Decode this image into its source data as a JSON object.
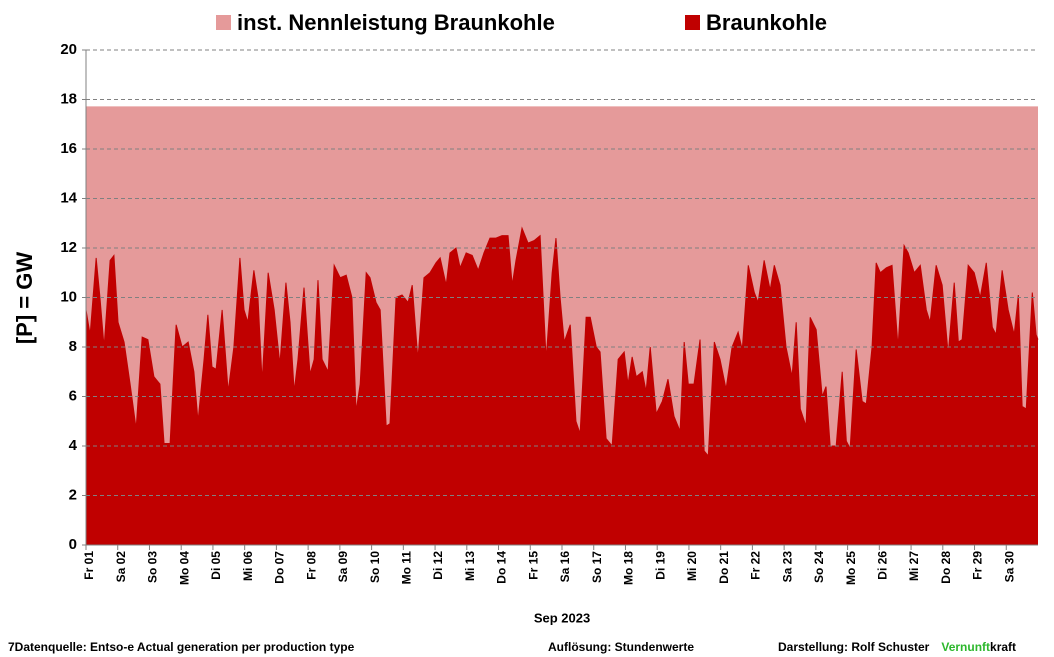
{
  "chart_data": {
    "type": "area",
    "legend": "top",
    "ylabel": "[P]  = GW",
    "xlabel": "Sep 2023",
    "ylim": [
      0,
      20
    ],
    "yticks": [
      0,
      2,
      4,
      6,
      8,
      10,
      12,
      14,
      16,
      18,
      20
    ],
    "grid": true,
    "xlim": [
      0,
      30
    ],
    "xticks": [
      {
        "value": 0,
        "label": "Fr 01"
      },
      {
        "value": 1,
        "label": "Sa 02"
      },
      {
        "value": 2,
        "label": "So 03"
      },
      {
        "value": 3,
        "label": "Mo 04"
      },
      {
        "value": 4,
        "label": "Di 05"
      },
      {
        "value": 5,
        "label": "Mi 06"
      },
      {
        "value": 6,
        "label": "Do 07"
      },
      {
        "value": 7,
        "label": "Fr 08"
      },
      {
        "value": 8,
        "label": "Sa 09"
      },
      {
        "value": 9,
        "label": "So 10"
      },
      {
        "value": 10,
        "label": "Mo 11"
      },
      {
        "value": 11,
        "label": "Di 12"
      },
      {
        "value": 12,
        "label": "Mi 13"
      },
      {
        "value": 13,
        "label": "Do 14"
      },
      {
        "value": 14,
        "label": "Fr 15"
      },
      {
        "value": 15,
        "label": "Sa 16"
      },
      {
        "value": 16,
        "label": "So 17"
      },
      {
        "value": 17,
        "label": "Mo 18"
      },
      {
        "value": 18,
        "label": "Di 19"
      },
      {
        "value": 19,
        "label": "Mi 20"
      },
      {
        "value": 20,
        "label": "Do 21"
      },
      {
        "value": 21,
        "label": "Fr 22"
      },
      {
        "value": 22,
        "label": "Sa 23"
      },
      {
        "value": 23,
        "label": "So 24"
      },
      {
        "value": 24,
        "label": "Mo 25"
      },
      {
        "value": 25,
        "label": "Di 26"
      },
      {
        "value": 26,
        "label": "Mi 27"
      },
      {
        "value": 27,
        "label": "Do 28"
      },
      {
        "value": 28,
        "label": "Fr 29"
      },
      {
        "value": 29,
        "label": "Sa 30"
      }
    ],
    "series": [
      {
        "name": "inst. Nennleistung Braunkohle",
        "color": "#e59a9a",
        "x": [
          0,
          30
        ],
        "values": [
          17.7,
          17.7
        ]
      },
      {
        "name": "Braunkohle",
        "color": "#c00000",
        "x": [
          0,
          0.13,
          0.32,
          0.44,
          0.57,
          0.76,
          0.88,
          1.01,
          1.2,
          1.39,
          1.58,
          1.77,
          1.95,
          2.14,
          2.33,
          2.46,
          2.65,
          2.84,
          3.03,
          3.22,
          3.4,
          3.53,
          3.72,
          3.84,
          3.97,
          4.1,
          4.29,
          4.48,
          4.66,
          4.85,
          4.98,
          5.1,
          5.29,
          5.42,
          5.55,
          5.74,
          5.93,
          6.11,
          6.3,
          6.43,
          6.56,
          6.68,
          6.87,
          7.06,
          7.19,
          7.31,
          7.44,
          7.63,
          7.82,
          8.01,
          8.2,
          8.38,
          8.51,
          8.64,
          8.83,
          8.95,
          9.14,
          9.27,
          9.46,
          9.58,
          9.77,
          9.96,
          10.15,
          10.28,
          10.46,
          10.65,
          10.84,
          11.03,
          11.16,
          11.35,
          11.47,
          11.66,
          11.79,
          11.98,
          12.17,
          12.36,
          12.54,
          12.73,
          12.92,
          13.11,
          13.3,
          13.43,
          13.55,
          13.74,
          13.93,
          14.12,
          14.31,
          14.5,
          14.69,
          14.81,
          14.94,
          15.07,
          15.26,
          15.44,
          15.57,
          15.76,
          15.89,
          16.08,
          16.2,
          16.39,
          16.58,
          16.77,
          16.96,
          17.08,
          17.21,
          17.34,
          17.53,
          17.65,
          17.78,
          17.97,
          18.16,
          18.34,
          18.53,
          18.72,
          18.85,
          18.98,
          19.16,
          19.35,
          19.48,
          19.61,
          19.8,
          19.98,
          20.17,
          20.36,
          20.55,
          20.68,
          20.87,
          21.06,
          21.18,
          21.37,
          21.56,
          21.69,
          21.87,
          22.06,
          22.25,
          22.38,
          22.51,
          22.69,
          22.82,
          23.01,
          23.2,
          23.32,
          23.45,
          23.64,
          23.83,
          23.96,
          24.08,
          24.27,
          24.46,
          24.59,
          24.77,
          24.9,
          25.03,
          25.22,
          25.4,
          25.59,
          25.78,
          25.91,
          26.1,
          26.29,
          26.48,
          26.6,
          26.79,
          26.98,
          27.17,
          27.36,
          27.49,
          27.61,
          27.8,
          27.99,
          28.18,
          28.37,
          28.56,
          28.68,
          28.87,
          29.06,
          29.25,
          29.38,
          29.5,
          29.63,
          29.82,
          29.94,
          30
        ],
        "values": [
          9.5,
          8.5,
          11.6,
          10,
          8,
          11.5,
          11.7,
          9,
          8.2,
          6.5,
          4.7,
          8.4,
          8.3,
          6.8,
          6.5,
          4.1,
          4.1,
          8.9,
          8,
          8.2,
          7,
          5,
          7.5,
          9.3,
          7.2,
          7.1,
          9.5,
          6.2,
          8,
          11.6,
          9.5,
          9,
          11.1,
          10,
          6.6,
          11,
          9.5,
          7.3,
          10.6,
          9,
          6.2,
          7.5,
          10.4,
          6.9,
          7.5,
          10.7,
          7.5,
          7,
          11.3,
          10.8,
          10.9,
          10,
          5.4,
          6.5,
          11,
          10.8,
          9.8,
          9.5,
          4.8,
          4.9,
          10,
          10.1,
          9.8,
          10.5,
          7.5,
          10.8,
          11,
          11.4,
          11.6,
          10.5,
          11.8,
          12,
          11.2,
          11.8,
          11.7,
          11.1,
          11.8,
          12.4,
          12.4,
          12.5,
          12.5,
          10.5,
          11.5,
          12.8,
          12.2,
          12.3,
          12.5,
          7.5,
          11,
          12.4,
          10,
          8.2,
          8.9,
          5,
          4.5,
          9.2,
          9.2,
          8,
          7.8,
          4.3,
          4,
          7.5,
          7.8,
          6.5,
          7.6,
          6.8,
          7,
          6.2,
          8,
          5.3,
          5.8,
          6.7,
          5.2,
          4.6,
          8.2,
          6.5,
          6.5,
          8.3,
          3.8,
          3.6,
          8.2,
          7.5,
          6.3,
          8,
          8.6,
          7.9,
          11.3,
          10.2,
          9.8,
          11.5,
          10.3,
          11.3,
          10.5,
          8,
          6.8,
          9,
          5.5,
          4.8,
          9.2,
          8.7,
          6,
          6.4,
          4,
          4,
          7,
          4.2,
          3.9,
          7.9,
          5.8,
          5.7,
          8,
          11.4,
          11,
          11.2,
          11.3,
          8,
          12.1,
          11.8,
          11,
          11.3,
          9.5,
          9,
          11.3,
          10.5,
          7.7,
          10.6,
          8.2,
          8.3,
          11.3,
          11,
          10,
          11.4,
          8.8,
          8.5,
          11.1,
          9.5,
          8.5,
          10.1,
          5.6,
          5.5,
          10.2,
          8.5,
          8.3
        ]
      }
    ]
  },
  "footer": {
    "source": "7Datenquelle: Entso-e  Actual generation per production type",
    "resolution": "Auflösung: Stundenwerte",
    "author": "Darstellung:  Rolf Schuster",
    "brand_green": "Vernunft",
    "brand_rest": "kraft"
  }
}
